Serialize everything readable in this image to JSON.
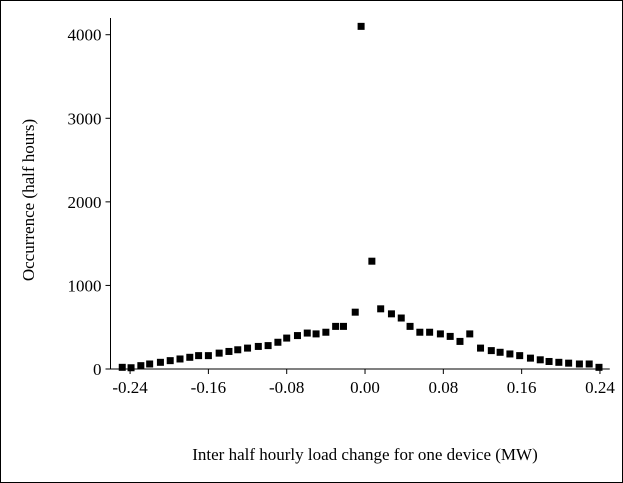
{
  "chart_data": {
    "type": "scatter",
    "xlabel": "Inter half hourly load change for one device (MW)",
    "ylabel": "Occurrence (half hours)",
    "xlim": [
      -0.26,
      0.25
    ],
    "ylim": [
      0,
      4200
    ],
    "xticks": [
      -0.24,
      -0.16,
      -0.08,
      {
        "value": 0,
        "label": "0.00"
      },
      0.08,
      0.16,
      0.24
    ],
    "yticks": [
      0,
      1000,
      2000,
      3000,
      4000
    ],
    "color": "#000000",
    "x": [
      -0.248,
      -0.239,
      -0.229,
      -0.22,
      -0.209,
      -0.199,
      -0.189,
      -0.179,
      -0.17,
      -0.16,
      -0.149,
      -0.139,
      -0.13,
      -0.12,
      -0.109,
      -0.099,
      -0.089,
      -0.08,
      -0.069,
      -0.059,
      -0.05,
      -0.04,
      -0.03,
      -0.022,
      -0.01,
      -0.004,
      0.007,
      0.016,
      0.027,
      0.037,
      0.046,
      0.056,
      0.066,
      0.077,
      0.087,
      0.097,
      0.107,
      0.118,
      0.129,
      0.138,
      0.148,
      0.158,
      0.169,
      0.179,
      0.188,
      0.198,
      0.208,
      0.219,
      0.229,
      0.239
    ],
    "values": [
      20,
      15,
      40,
      60,
      80,
      100,
      120,
      140,
      160,
      160,
      190,
      210,
      230,
      250,
      270,
      280,
      320,
      370,
      400,
      430,
      420,
      440,
      510,
      510,
      680,
      4100,
      1290,
      720,
      660,
      610,
      510,
      440,
      440,
      420,
      390,
      330,
      420,
      250,
      220,
      200,
      180,
      160,
      130,
      110,
      90,
      80,
      70,
      60,
      60,
      20
    ]
  }
}
